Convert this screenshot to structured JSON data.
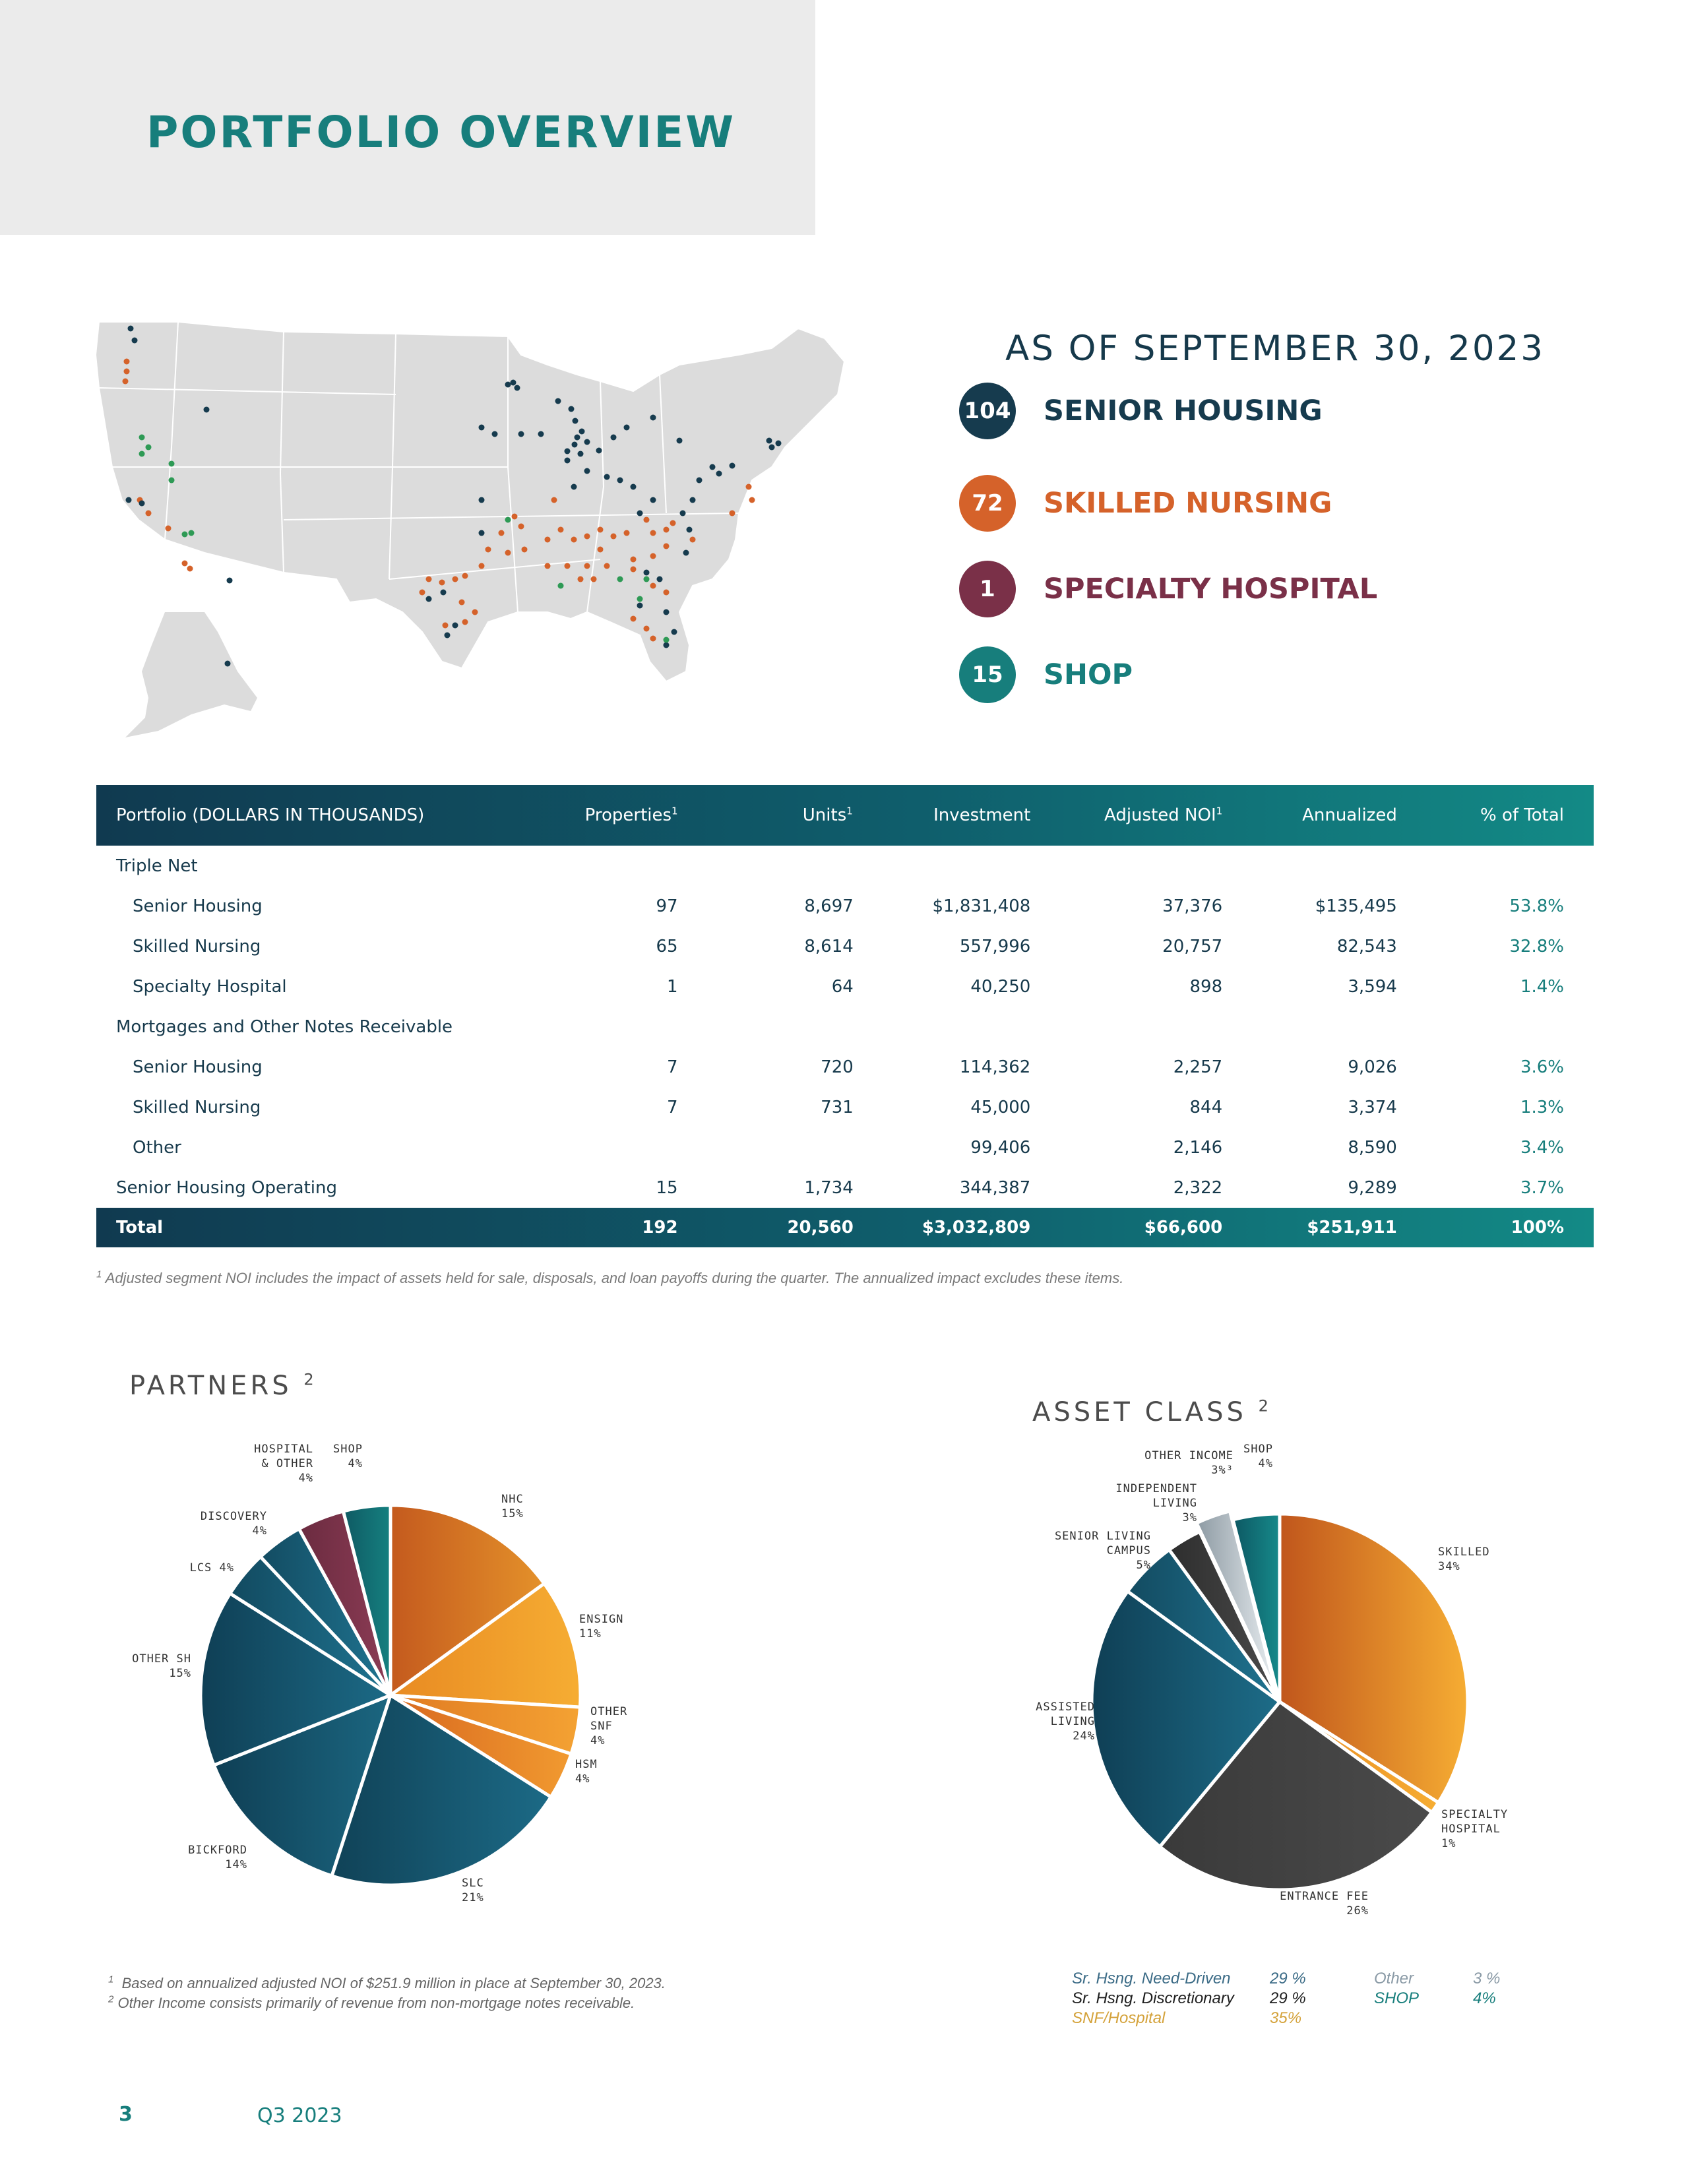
{
  "header": {
    "title": "PORTFOLIO OVERVIEW"
  },
  "summary": {
    "as_of": "AS OF SEPTEMBER 30, 2023",
    "items": [
      {
        "count": "104",
        "label": "SENIOR HOUSING",
        "color": "#163b4e"
      },
      {
        "count": "72",
        "label": "SKILLED NURSING",
        "color": "#d5622a"
      },
      {
        "count": "1",
        "label": "SPECIALTY HOSPITAL",
        "color": "#7a3048"
      },
      {
        "count": "15",
        "label": "SHOP",
        "color": "#177e7c"
      }
    ]
  },
  "map": {
    "colors": {
      "senior_housing": "#163b4e",
      "skilled_nursing": "#d5622a",
      "shop": "#2e9a55",
      "land": "#dcdcdc"
    }
  },
  "table": {
    "headers": [
      "Portfolio  (DOLLARS IN THOUSANDS)",
      "Properties",
      "Units",
      "Investment",
      "Adjusted NOI",
      "Annualized",
      "% of Total"
    ],
    "header_sup": [
      "",
      "1",
      "1",
      "",
      "1",
      "",
      ""
    ],
    "rows": [
      {
        "label": "Triple Net",
        "indent": false,
        "values": [
          "",
          "",
          "",
          "",
          "",
          ""
        ]
      },
      {
        "label": "Senior Housing",
        "indent": true,
        "values": [
          "97",
          "8,697",
          "$1,831,408",
          "37,376",
          "$135,495",
          "53.8%"
        ]
      },
      {
        "label": "Skilled Nursing",
        "indent": true,
        "values": [
          "65",
          "8,614",
          "557,996",
          "20,757",
          "82,543",
          "32.8%"
        ]
      },
      {
        "label": "Specialty Hospital",
        "indent": true,
        "values": [
          "1",
          "64",
          "40,250",
          "898",
          "3,594",
          "1.4%"
        ]
      },
      {
        "label": "Mortgages and Other Notes Receivable",
        "indent": false,
        "values": [
          "",
          "",
          "",
          "",
          "",
          ""
        ]
      },
      {
        "label": "Senior Housing",
        "indent": true,
        "values": [
          "7",
          "720",
          "114,362",
          "2,257",
          "9,026",
          "3.6%"
        ]
      },
      {
        "label": "Skilled Nursing",
        "indent": true,
        "values": [
          "7",
          "731",
          "45,000",
          "844",
          "3,374",
          "1.3%"
        ]
      },
      {
        "label": "Other",
        "indent": true,
        "values": [
          "",
          "",
          "99,406",
          "2,146",
          "8,590",
          "3.4%"
        ]
      },
      {
        "label": "Senior Housing Operating",
        "indent": false,
        "values": [
          "15",
          "1,734",
          "344,387",
          "2,322",
          "9,289",
          "3.7%"
        ]
      }
    ],
    "total": {
      "label": "Total",
      "values": [
        "192",
        "20,560",
        "$3,032,809",
        "$66,600",
        "$251,911",
        "100%"
      ]
    }
  },
  "footnote_table": {
    "sup": "1",
    "text": "Adjusted segment NOI includes the impact of assets held for sale, disposals, and loan payoffs during the quarter. The annualized impact excludes these items."
  },
  "chart_data": [
    {
      "type": "pie",
      "title": "PARTNERS",
      "title_sup": "2",
      "categories": [
        "NHC",
        "ENSIGN",
        "OTHER SNF",
        "HSM",
        "SLC",
        "BICKFORD",
        "OTHER SH",
        "LCS",
        "DISCOVERY",
        "HOSPITAL & OTHER",
        "SHOP"
      ],
      "values": [
        15,
        11,
        4,
        4,
        21,
        14,
        15,
        4,
        4,
        4,
        4
      ],
      "label_lines": [
        [
          "NHC",
          "15%"
        ],
        [
          "ENSIGN",
          "11%"
        ],
        [
          "OTHER",
          "SNF",
          "4%"
        ],
        [
          "HSM",
          "4%"
        ],
        [
          "SLC",
          "21%"
        ],
        [
          "BICKFORD",
          "14%"
        ],
        [
          "OTHER SH",
          "15%"
        ],
        [
          "LCS  4%"
        ],
        [
          "DISCOVERY",
          "4%"
        ],
        [
          "HOSPITAL",
          "& OTHER",
          "4%"
        ],
        [
          "SHOP",
          "4%"
        ]
      ],
      "colors": [
        [
          "#c45a1e",
          "#e4912a"
        ],
        [
          "#e88a22",
          "#f6ad33"
        ],
        [
          "#e07a22",
          "#f4a233"
        ],
        [
          "#d8681f",
          "#f19a30"
        ],
        [
          "#104257",
          "#1c6a86"
        ],
        [
          "#0f3f55",
          "#1b6680"
        ],
        [
          "#0f3f55",
          "#1c6a86"
        ],
        [
          "#124a60",
          "#1f7390"
        ],
        [
          "#134c62",
          "#1f7390"
        ],
        [
          "#6b2b40",
          "#8c3c55"
        ],
        [
          "#0f5a63",
          "#158080"
        ]
      ]
    },
    {
      "type": "pie",
      "title": "ASSET  CLASS",
      "title_sup": "2",
      "categories": [
        "SKILLED",
        "SPECIALTY HOSPITAL",
        "ENTRANCE FEE",
        "ASSISTED LIVING",
        "SENIOR LIVING CAMPUS",
        "INDEPENDENT LIVING",
        "OTHER INCOME",
        "SHOP"
      ],
      "values": [
        34,
        1,
        26,
        24,
        5,
        3,
        3,
        4
      ],
      "label_lines": [
        [
          "SKILLED",
          "34%"
        ],
        [
          "SPECIALTY",
          "HOSPITAL",
          "1%"
        ],
        [
          "ENTRANCE FEE",
          "26%"
        ],
        [
          "ASSISTED",
          "LIVING",
          "24%"
        ],
        [
          "SENIOR LIVING",
          "CAMPUS",
          "5%"
        ],
        [
          "INDEPENDENT",
          "LIVING",
          "3%"
        ],
        [
          "OTHER INCOME",
          "3%³"
        ],
        [
          "SHOP",
          "4%"
        ]
      ],
      "colors": [
        [
          "#c0561c",
          "#f6ad33"
        ],
        [
          "#e88a22",
          "#f6ad33"
        ],
        [
          "#3a3a3a",
          "#4a4a4a"
        ],
        [
          "#0f3f55",
          "#1d6c88"
        ],
        [
          "#134b61",
          "#1f7390"
        ],
        [
          "#2e2e2e",
          "#4a4a4a"
        ],
        [
          "#8d9aa3",
          "#e9eef1"
        ],
        [
          "#0d5863",
          "#16898a"
        ]
      ]
    }
  ],
  "notes": {
    "line1_sup": "1",
    "line1": "Based on annualized adjusted NOI of $251.9 million in place at September 30, 2023.",
    "line2_sup": "2",
    "line2": "Other Income consists primarily of revenue from non-mortgage notes receivable."
  },
  "legend": {
    "col1": [
      {
        "label": "Sr. Hsng. Need-Driven",
        "value": "29 %",
        "color": "#3b6b86"
      },
      {
        "label": "Sr. Hsng. Discretionary",
        "value": "29 %",
        "color": "#1e1e1e"
      },
      {
        "label": "SNF/Hospital",
        "value": "35%",
        "color": "#d4a23a"
      }
    ],
    "col2": [
      {
        "label": "Other",
        "value": "3 %",
        "color": "#8a9aa6"
      },
      {
        "label": "SHOP",
        "value": "4%",
        "color": "#177e7c"
      }
    ]
  },
  "footer": {
    "page": "3",
    "quarter": "Q3 2023"
  }
}
